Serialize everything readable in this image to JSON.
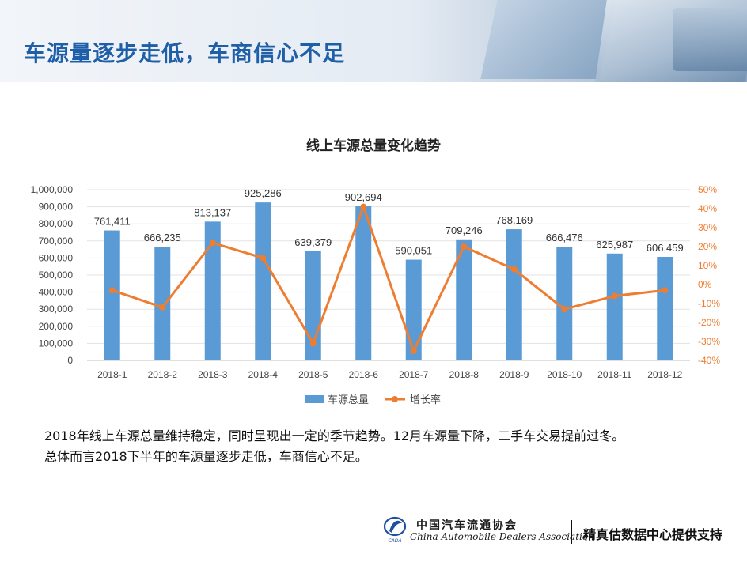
{
  "header": {
    "title": "车源量逐步走低，车商信心不足"
  },
  "chart_data": {
    "type": "bar",
    "title": "线上车源总量变化趋势",
    "categories": [
      "2018-1",
      "2018-2",
      "2018-3",
      "2018-4",
      "2018-5",
      "2018-6",
      "2018-7",
      "2018-8",
      "2018-9",
      "2018-10",
      "2018-11",
      "2018-12"
    ],
    "series": [
      {
        "name": "车源总量",
        "type": "bar",
        "axis": "left",
        "color": "#5b9bd5",
        "values": [
          761411,
          666235,
          813137,
          925286,
          639379,
          902694,
          590051,
          709246,
          768169,
          666476,
          625987,
          606459
        ],
        "labels": [
          "761,411",
          "666,235",
          "813,137",
          "925,286",
          "639,379",
          "902,694",
          "590,051",
          "709,246",
          "768,169",
          "666,476",
          "625,987",
          "606,459"
        ]
      },
      {
        "name": "增长率",
        "type": "line",
        "axis": "right",
        "color": "#ed7d31",
        "values": [
          -3,
          -12,
          22,
          14,
          -31,
          41,
          -35,
          20,
          8,
          -13,
          -6,
          -3
        ]
      }
    ],
    "y_left": {
      "min": 0,
      "max": 1000000,
      "ticks": [
        "0",
        "100,000",
        "200,000",
        "300,000",
        "400,000",
        "500,000",
        "600,000",
        "700,000",
        "800,000",
        "900,000",
        "1,000,000"
      ]
    },
    "y_right": {
      "min": -40,
      "max": 50,
      "ticks": [
        "-40%",
        "-30%",
        "-20%",
        "-10%",
        "0%",
        "10%",
        "20%",
        "30%",
        "40%",
        "50%"
      ],
      "color": "#ed7d31"
    },
    "grid": true,
    "legend_position": "bottom"
  },
  "description": {
    "line1": "2018年线上车源总量维持稳定，同时呈现出一定的季节趋势。12月车源量下降，二手车交易提前过冬。",
    "line2": "总体而言2018下半年的车源量逐步走低，车商信心不足。"
  },
  "footer": {
    "org_cn": "中国汽车流通协会",
    "org_en": "China Automobile Dealers Association",
    "logo_text": "CADA",
    "support": "精真估数据中心提供支持"
  }
}
